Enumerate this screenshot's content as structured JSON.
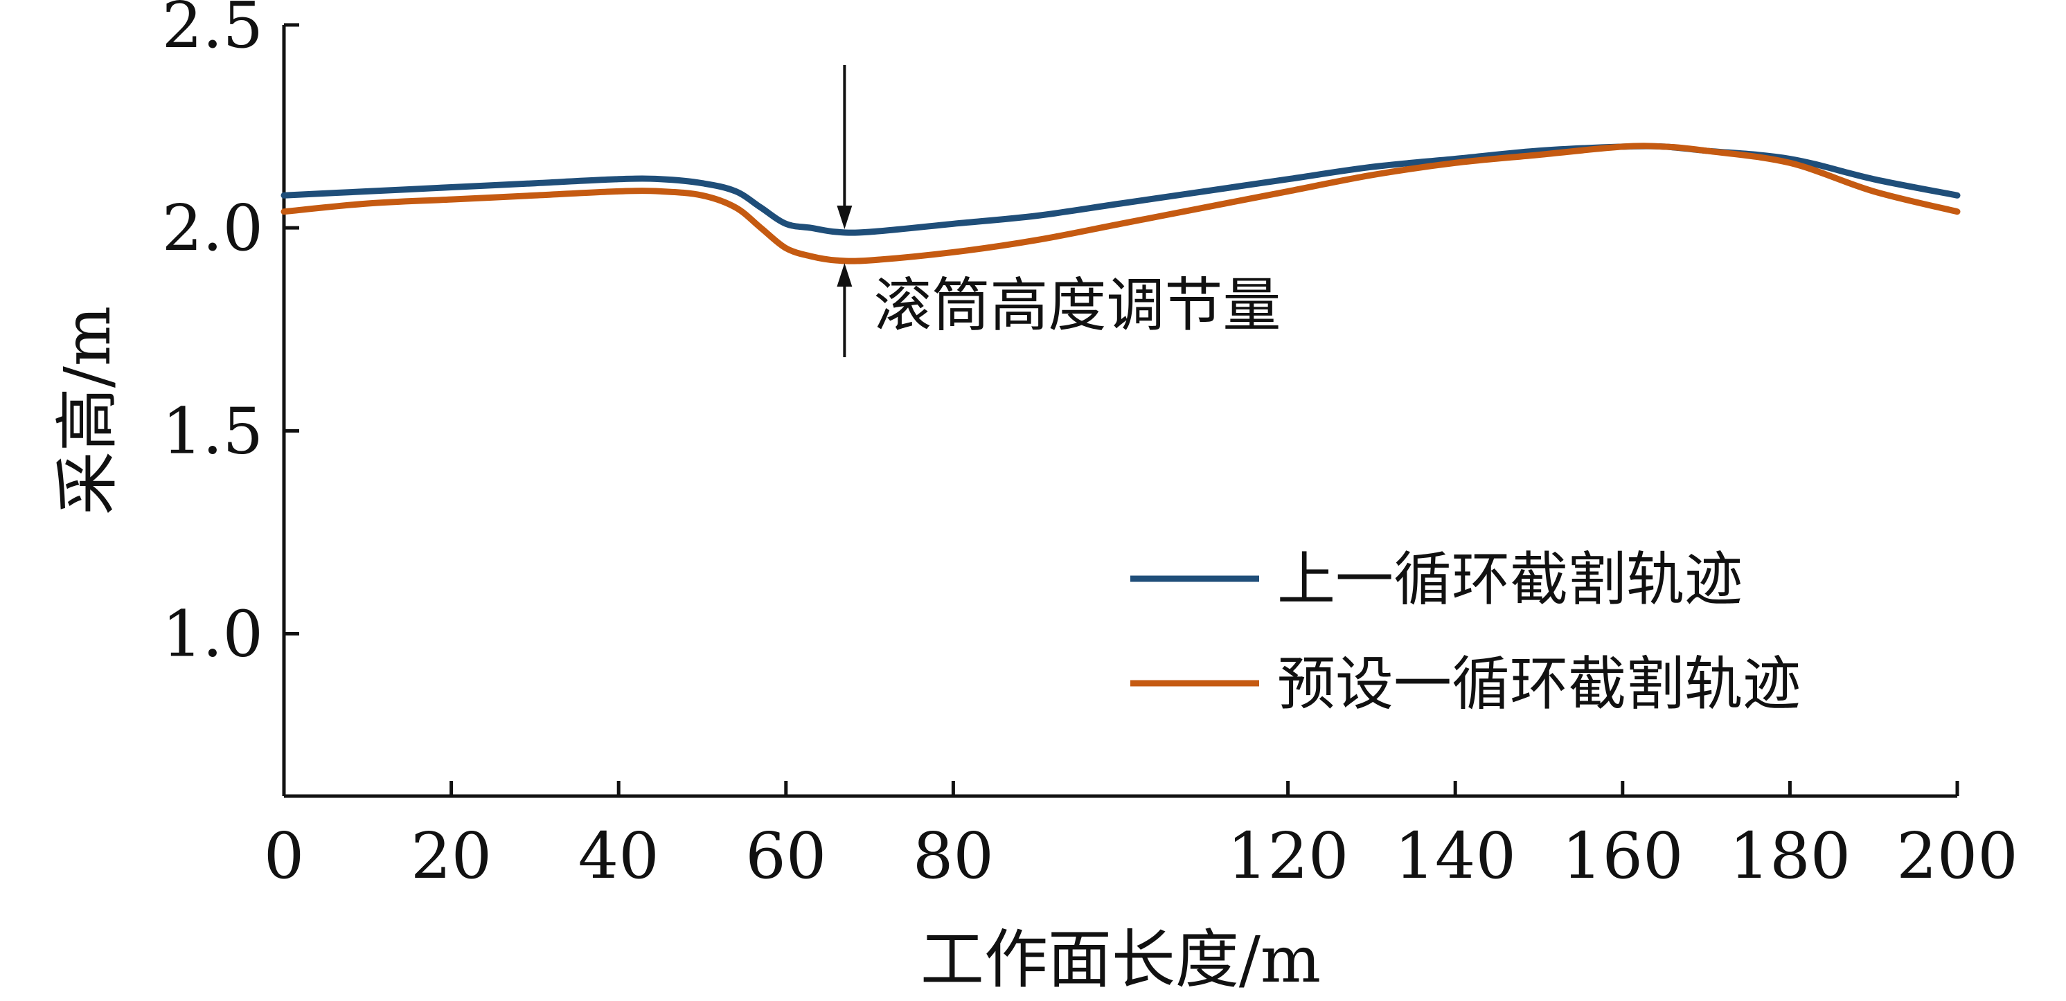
{
  "chart_data": {
    "type": "line",
    "title": "",
    "xlabel": "工作面长度/m",
    "ylabel": "采高/m",
    "xlim": [
      0,
      200
    ],
    "ylim": [
      0.6,
      2.5
    ],
    "xticks": [
      0,
      20,
      40,
      60,
      80,
      120,
      140,
      160,
      180,
      200
    ],
    "xtick_labels": [
      "0",
      "20",
      "40",
      "60",
      "80",
      "120",
      "140",
      "160",
      "180",
      "200"
    ],
    "yticks": [
      1.0,
      1.5,
      2.0,
      2.5
    ],
    "ytick_labels": [
      "1.0",
      "1.5",
      "2.0",
      "2.5"
    ],
    "grid": false,
    "legend_position": "lower-right",
    "series": [
      {
        "name": "上一循环截割轨迹",
        "color": "#1f4e79",
        "x": [
          0,
          10,
          20,
          30,
          40,
          45,
          50,
          54,
          57,
          60,
          63,
          66,
          70,
          80,
          90,
          100,
          110,
          120,
          130,
          140,
          150,
          160,
          165,
          170,
          180,
          190,
          200
        ],
        "y": [
          2.08,
          2.09,
          2.1,
          2.11,
          2.12,
          2.12,
          2.11,
          2.09,
          2.05,
          2.01,
          2.0,
          1.99,
          1.99,
          2.01,
          2.03,
          2.06,
          2.09,
          2.12,
          2.15,
          2.17,
          2.19,
          2.2,
          2.2,
          2.19,
          2.17,
          2.12,
          2.08
        ]
      },
      {
        "name": "预设一循环截割轨迹",
        "color": "#c55a11",
        "x": [
          0,
          10,
          20,
          30,
          40,
          45,
          50,
          54,
          57,
          60,
          63,
          66,
          70,
          80,
          90,
          100,
          110,
          120,
          130,
          140,
          150,
          160,
          165,
          170,
          180,
          190,
          200
        ],
        "y": [
          2.04,
          2.06,
          2.07,
          2.08,
          2.09,
          2.09,
          2.08,
          2.05,
          2.0,
          1.95,
          1.93,
          1.92,
          1.92,
          1.94,
          1.97,
          2.01,
          2.05,
          2.09,
          2.13,
          2.16,
          2.18,
          2.2,
          2.2,
          2.19,
          2.16,
          2.09,
          2.04
        ]
      }
    ],
    "annotation": {
      "text": "滚筒高度调节量",
      "x": 67
    }
  }
}
